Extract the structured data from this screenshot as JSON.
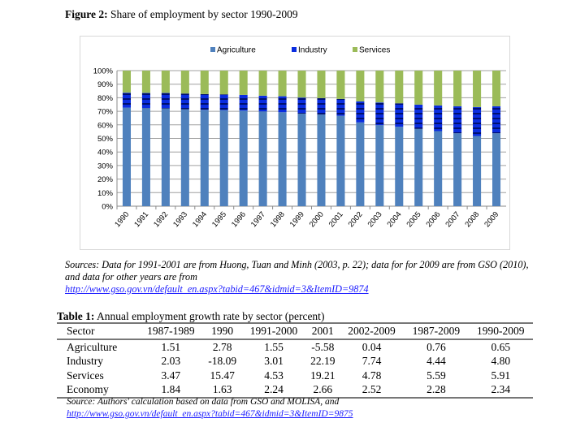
{
  "figure": {
    "label": "Figure 2:",
    "title": "Share of employment by sector 1990-2009",
    "sources_text": "Sources: Data for 1991-2001 are  from Huong, Tuan and Minh (2003, p. 22); data for for 2009 are from GSO (2010), and data for other years are from",
    "sources_link": "http://www.gso.gov.vn/default_en.aspx?tabid=467&idmid=3&ItemID=9874"
  },
  "chart_data": {
    "type": "bar",
    "stacked": true,
    "normalized": true,
    "categories": [
      "1990",
      "1991",
      "1992",
      "1993",
      "1994",
      "1995",
      "1996",
      "1997",
      "1998",
      "1999",
      "2000",
      "2001",
      "2002",
      "2003",
      "2004",
      "2005",
      "2006",
      "2007",
      "2008",
      "2009"
    ],
    "series": [
      {
        "name": "Agriculture",
        "color": "#4f81bd",
        "values": [
          72.7,
          72.3,
          72.1,
          71.5,
          71.1,
          70.9,
          70.5,
          69.9,
          69.3,
          68.3,
          67.7,
          66.7,
          61.8,
          59.8,
          58.6,
          57.0,
          55.4,
          53.8,
          51.8,
          53.8
        ]
      },
      {
        "name": "Industry",
        "color": "#0a2de0",
        "values": [
          11.0,
          11.2,
          11.4,
          11.6,
          11.6,
          11.6,
          11.6,
          11.6,
          11.8,
          11.8,
          12.0,
          12.4,
          15.5,
          16.7,
          17.3,
          17.9,
          18.9,
          19.9,
          21.3,
          19.9
        ]
      },
      {
        "name": "Services",
        "color": "#9bbb59",
        "values": [
          16.3,
          16.5,
          16.5,
          16.9,
          17.3,
          17.5,
          17.9,
          18.5,
          18.9,
          19.9,
          20.3,
          20.9,
          22.7,
          23.5,
          24.1,
          25.1,
          25.7,
          26.3,
          26.9,
          26.3
        ]
      }
    ],
    "ylim": [
      0,
      100
    ],
    "yticks": [
      "0%",
      "10%",
      "20%",
      "30%",
      "40%",
      "50%",
      "60%",
      "70%",
      "80%",
      "90%",
      "100%"
    ],
    "grid": true,
    "legend": "top"
  },
  "table": {
    "label": "Table 1:",
    "title": "Annual employment growth rate by sector (percent)",
    "headers": [
      "Sector",
      "1987-1989",
      "1990",
      "1991-2000",
      "2001",
      "2002-2009",
      "1987-2009",
      "1990-2009"
    ],
    "rows": [
      [
        "Agriculture",
        "1.51",
        "2.78",
        "1.55",
        "-5.58",
        "0.04",
        "0.76",
        "0.65"
      ],
      [
        "Industry",
        "2.03",
        "-18.09",
        "3.01",
        "22.19",
        "7.74",
        "4.44",
        "4.80"
      ],
      [
        "Services",
        "3.47",
        "15.47",
        "4.53",
        "19.21",
        "4.78",
        "5.59",
        "5.91"
      ],
      [
        "Economy",
        "1.84",
        "1.63",
        "2.24",
        "2.66",
        "2.52",
        "2.28",
        "2.34"
      ]
    ],
    "source_text": "Source: Authors' calculation based on data from GSO and MOLISA, and",
    "source_link": "http://www.gso.gov.vn/default_en.aspx?tabid=467&idmid=3&ItemID=9875"
  }
}
